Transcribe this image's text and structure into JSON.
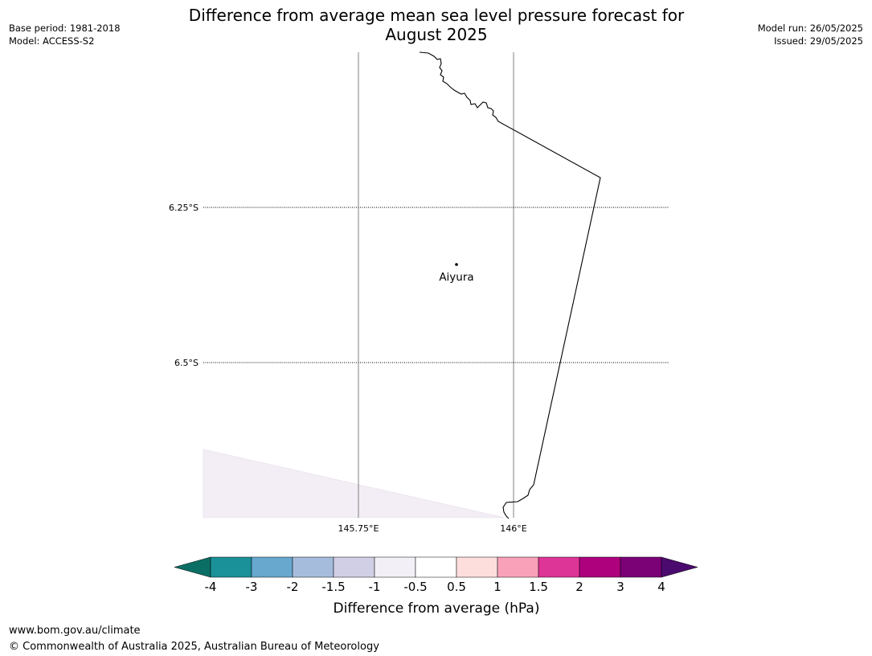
{
  "header": {
    "title_line1": "Difference from average mean sea level pressure forecast for",
    "title_line2": "August 2025",
    "base_period": "Base period: 1981-2018",
    "model": "Model: ACCESS-S2",
    "model_run": "Model run: 26/05/2025",
    "issued": "Issued: 29/05/2025"
  },
  "map": {
    "lat_labels": [
      "6.25°S",
      "6.5°S"
    ],
    "lon_labels": [
      "145.75°E",
      "146°E"
    ],
    "place": {
      "name": "Aiyura"
    }
  },
  "colorbar": {
    "label": "Difference from average (hPa)",
    "ticks": [
      "-4",
      "-3",
      "-2",
      "-1.5",
      "-1",
      "-0.5",
      "0.5",
      "1",
      "1.5",
      "2",
      "3",
      "4"
    ],
    "colors": [
      "#1a9198",
      "#68a8cf",
      "#a6bcdc",
      "#d1cfe6",
      "#f3eff6",
      "#ffffff",
      "#fddedd",
      "#f9a1b8",
      "#dd3497",
      "#ad017e",
      "#7b0177"
    ],
    "under_color": "#0b6e64",
    "over_color": "#4b0b6e"
  },
  "footer": {
    "url": "www.bom.gov.au/climate",
    "copyright": "© Commonwealth of Australia 2025, Australian Bureau of Meteorology"
  }
}
